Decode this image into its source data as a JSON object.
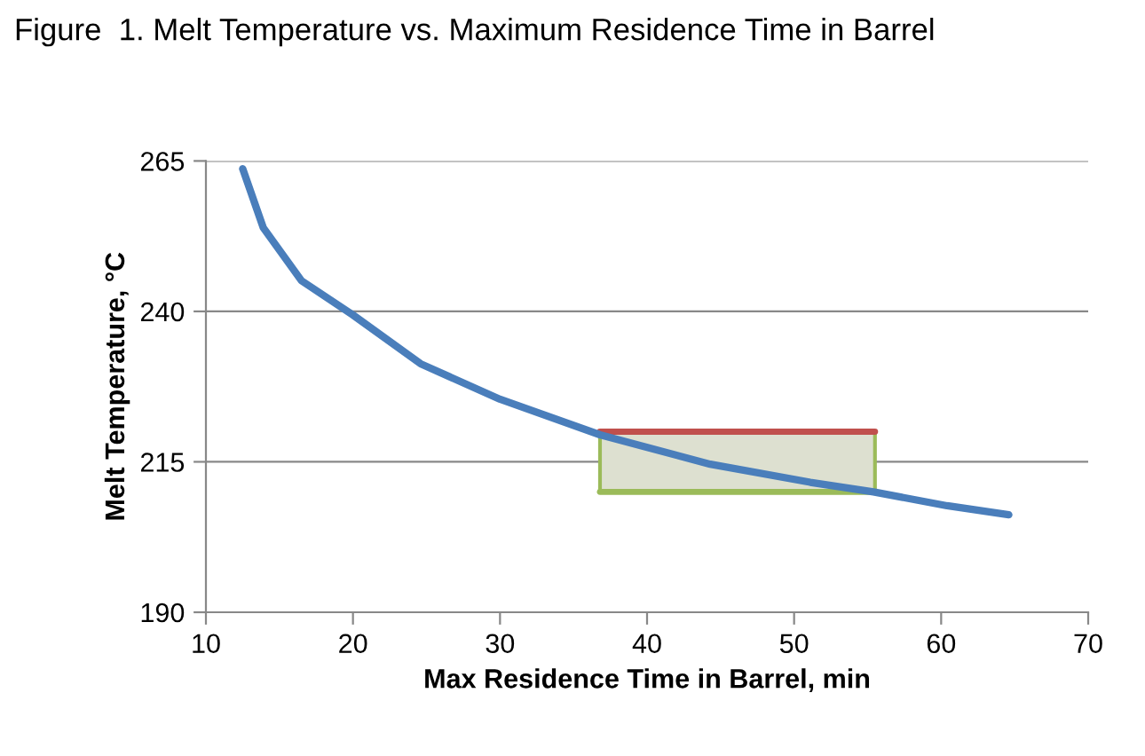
{
  "chart_data": {
    "type": "line",
    "title": "Figure  1. Melt Temperature vs. Maximum Residence Time in Barrel",
    "xlabel": "Max Residence Time in Barrel, min",
    "ylabel": "Melt Temperature, °C",
    "series": [
      {
        "color": "#4a7ebb",
        "x": [
          12.5,
          13.9,
          16.5,
          20,
          24.6,
          30,
          36.8,
          44.3,
          51.1,
          55.4,
          60.4,
          64.6
        ],
        "values": [
          263.7,
          253.9,
          245.1,
          239.4,
          231.3,
          225.4,
          219.5,
          214.6,
          211.6,
          210.0,
          207.7,
          206.2
        ]
      },
      {
        "color": "#c0504d",
        "x": [
          36.8,
          55.5
        ],
        "values": [
          220,
          220
        ]
      },
      {
        "color": "#9bbb59",
        "x": [
          36.8,
          55.5
        ],
        "values": [
          210,
          210
        ],
        "lower": [
          210,
          210
        ],
        "upper": [
          220,
          220
        ]
      }
    ],
    "xlim": [
      10,
      70
    ],
    "xticks": [
      10,
      20,
      30,
      40,
      50,
      60,
      70
    ],
    "ylim": [
      190,
      265
    ],
    "yticks": [
      190,
      215,
      240,
      265
    ],
    "grid": "y"
  }
}
